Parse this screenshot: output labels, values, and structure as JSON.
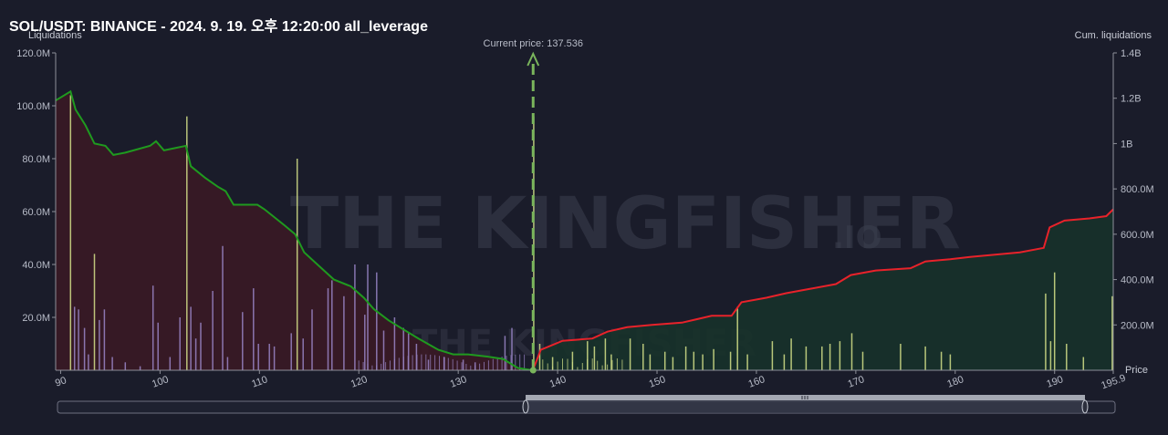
{
  "chart_data": {
    "type": "bar",
    "title": "SOL/USDT: BINANCE - 2024. 9. 19. 오후 12:20:00 all_leverage",
    "ylabel": "Liquidations",
    "ylabel_right": "Cum. liquidations",
    "xlabel": "Price",
    "xlim": [
      89.5,
      195.9
    ],
    "ylim": [
      0,
      120000000
    ],
    "ylim_right": [
      0,
      1400000000
    ],
    "x_ticks": [
      90,
      100,
      110,
      120,
      130,
      140,
      150,
      160,
      170,
      180,
      190,
      195.9
    ],
    "x_tick_labels": [
      "90",
      "100",
      "110",
      "120",
      "130",
      "140",
      "150",
      "160",
      "170",
      "180",
      "190",
      "195.9"
    ],
    "y_ticks": [
      20000000,
      40000000,
      60000000,
      80000000,
      100000000,
      120000000
    ],
    "y_tick_labels": [
      "20.0M",
      "40.0M",
      "60.0M",
      "80.0M",
      "100.0M",
      "120.0M"
    ],
    "y_right_ticks": [
      200000000,
      400000000,
      600000000,
      800000000,
      1000000000,
      1200000000,
      1400000000
    ],
    "y_right_tick_labels": [
      "200.0M",
      "400.0M",
      "600.0M",
      "800.0M",
      "1B",
      "1.2B",
      "1.4B"
    ],
    "current_price": 137.536,
    "current_price_label": "Current price: 137.536",
    "watermark": [
      "THE",
      "KINGFISHER",
      ".IO"
    ],
    "bars": [
      {
        "x": 91.0,
        "y": 104000000,
        "color": "#d6e38a"
      },
      {
        "x": 91.4,
        "y": 24000000,
        "color": "#9a86c8"
      },
      {
        "x": 91.8,
        "y": 23000000,
        "color": "#9a86c8"
      },
      {
        "x": 92.4,
        "y": 16000000,
        "color": "#9a86c8"
      },
      {
        "x": 92.8,
        "y": 6000000,
        "color": "#9a86c8"
      },
      {
        "x": 93.4,
        "y": 44000000,
        "color": "#d6e38a"
      },
      {
        "x": 93.9,
        "y": 19000000,
        "color": "#9a86c8"
      },
      {
        "x": 94.4,
        "y": 23000000,
        "color": "#9a86c8"
      },
      {
        "x": 95.2,
        "y": 5000000,
        "color": "#9a86c8"
      },
      {
        "x": 96.5,
        "y": 3000000,
        "color": "#9a86c8"
      },
      {
        "x": 98.0,
        "y": 1500000,
        "color": "#9a86c8"
      },
      {
        "x": 99.3,
        "y": 32000000,
        "color": "#9a86c8"
      },
      {
        "x": 99.8,
        "y": 18000000,
        "color": "#9a86c8"
      },
      {
        "x": 101.0,
        "y": 5000000,
        "color": "#9a86c8"
      },
      {
        "x": 102.0,
        "y": 20000000,
        "color": "#9a86c8"
      },
      {
        "x": 102.7,
        "y": 96000000,
        "color": "#d6e38a"
      },
      {
        "x": 103.1,
        "y": 24000000,
        "color": "#9a86c8"
      },
      {
        "x": 103.6,
        "y": 12000000,
        "color": "#9a86c8"
      },
      {
        "x": 104.1,
        "y": 18000000,
        "color": "#9a86c8"
      },
      {
        "x": 105.3,
        "y": 30000000,
        "color": "#9a86c8"
      },
      {
        "x": 106.3,
        "y": 47000000,
        "color": "#9a86c8"
      },
      {
        "x": 106.8,
        "y": 5000000,
        "color": "#9a86c8"
      },
      {
        "x": 108.3,
        "y": 22000000,
        "color": "#9a86c8"
      },
      {
        "x": 109.4,
        "y": 31000000,
        "color": "#9a86c8"
      },
      {
        "x": 109.9,
        "y": 10000000,
        "color": "#9a86c8"
      },
      {
        "x": 111.0,
        "y": 10000000,
        "color": "#9a86c8"
      },
      {
        "x": 111.5,
        "y": 9000000,
        "color": "#9a86c8"
      },
      {
        "x": 113.2,
        "y": 14000000,
        "color": "#9a86c8"
      },
      {
        "x": 113.8,
        "y": 80000000,
        "color": "#d6e38a"
      },
      {
        "x": 114.4,
        "y": 12000000,
        "color": "#9a86c8"
      },
      {
        "x": 115.3,
        "y": 23000000,
        "color": "#9a86c8"
      },
      {
        "x": 116.9,
        "y": 31000000,
        "color": "#9a86c8"
      },
      {
        "x": 117.3,
        "y": 34000000,
        "color": "#9a86c8"
      },
      {
        "x": 118.5,
        "y": 28000000,
        "color": "#9a86c8"
      },
      {
        "x": 119.6,
        "y": 40000000,
        "color": "#9a86c8"
      },
      {
        "x": 120.6,
        "y": 21000000,
        "color": "#9a86c8"
      },
      {
        "x": 120.9,
        "y": 40000000,
        "color": "#9a86c8"
      },
      {
        "x": 121.8,
        "y": 37000000,
        "color": "#9a86c8"
      },
      {
        "x": 122.5,
        "y": 15000000,
        "color": "#9a86c8"
      },
      {
        "x": 123.6,
        "y": 20000000,
        "color": "#9a86c8"
      },
      {
        "x": 124.5,
        "y": 16000000,
        "color": "#9a86c8"
      },
      {
        "x": 125.0,
        "y": 14000000,
        "color": "#9a86c8"
      },
      {
        "x": 125.8,
        "y": 10000000,
        "color": "#9a86c8"
      },
      {
        "x": 127.0,
        "y": 4000000,
        "color": "#9a86c8"
      },
      {
        "x": 128.6,
        "y": 5000000,
        "color": "#9a86c8"
      },
      {
        "x": 130.5,
        "y": 4000000,
        "color": "#9a86c8"
      },
      {
        "x": 131.7,
        "y": 3000000,
        "color": "#9a86c8"
      },
      {
        "x": 134.7,
        "y": 13000000,
        "color": "#9a86c8"
      },
      {
        "x": 135.4,
        "y": 16000000,
        "color": "#9a86c8"
      },
      {
        "x": 137.6,
        "y": 96000000,
        "color": "#d6e38a"
      },
      {
        "x": 138.2,
        "y": 10000000,
        "color": "#d6e38a"
      },
      {
        "x": 139.5,
        "y": 5000000,
        "color": "#d6e38a"
      },
      {
        "x": 141.5,
        "y": 7000000,
        "color": "#d6e38a"
      },
      {
        "x": 143.0,
        "y": 11000000,
        "color": "#d6e38a"
      },
      {
        "x": 143.7,
        "y": 9000000,
        "color": "#d6e38a"
      },
      {
        "x": 144.8,
        "y": 12000000,
        "color": "#d6e38a"
      },
      {
        "x": 145.4,
        "y": 6000000,
        "color": "#d6e38a"
      },
      {
        "x": 147.3,
        "y": 12000000,
        "color": "#d6e38a"
      },
      {
        "x": 148.6,
        "y": 10000000,
        "color": "#d6e38a"
      },
      {
        "x": 149.3,
        "y": 6000000,
        "color": "#d6e38a"
      },
      {
        "x": 150.8,
        "y": 7000000,
        "color": "#d6e38a"
      },
      {
        "x": 151.6,
        "y": 5000000,
        "color": "#d6e38a"
      },
      {
        "x": 152.9,
        "y": 9000000,
        "color": "#d6e38a"
      },
      {
        "x": 153.7,
        "y": 7000000,
        "color": "#d6e38a"
      },
      {
        "x": 154.6,
        "y": 6000000,
        "color": "#d6e38a"
      },
      {
        "x": 155.7,
        "y": 8000000,
        "color": "#d6e38a"
      },
      {
        "x": 157.4,
        "y": 7000000,
        "color": "#d6e38a"
      },
      {
        "x": 158.1,
        "y": 24000000,
        "color": "#d6e38a"
      },
      {
        "x": 159.1,
        "y": 6000000,
        "color": "#d6e38a"
      },
      {
        "x": 161.6,
        "y": 11000000,
        "color": "#d6e38a"
      },
      {
        "x": 162.8,
        "y": 6000000,
        "color": "#d6e38a"
      },
      {
        "x": 163.5,
        "y": 12000000,
        "color": "#d6e38a"
      },
      {
        "x": 165.0,
        "y": 9000000,
        "color": "#d6e38a"
      },
      {
        "x": 166.6,
        "y": 9000000,
        "color": "#d6e38a"
      },
      {
        "x": 167.4,
        "y": 10000000,
        "color": "#d6e38a"
      },
      {
        "x": 168.4,
        "y": 11000000,
        "color": "#d6e38a"
      },
      {
        "x": 169.6,
        "y": 14000000,
        "color": "#d6e38a"
      },
      {
        "x": 170.7,
        "y": 7000000,
        "color": "#d6e38a"
      },
      {
        "x": 174.5,
        "y": 10000000,
        "color": "#d6e38a"
      },
      {
        "x": 177.0,
        "y": 9000000,
        "color": "#d6e38a"
      },
      {
        "x": 178.6,
        "y": 7000000,
        "color": "#d6e38a"
      },
      {
        "x": 179.5,
        "y": 6000000,
        "color": "#d6e38a"
      },
      {
        "x": 189.1,
        "y": 29000000,
        "color": "#d6e38a"
      },
      {
        "x": 189.6,
        "y": 11000000,
        "color": "#d6e38a"
      },
      {
        "x": 190.0,
        "y": 37000000,
        "color": "#d6e38a"
      },
      {
        "x": 191.2,
        "y": 10000000,
        "color": "#d6e38a"
      },
      {
        "x": 192.9,
        "y": 5000000,
        "color": "#d6e38a"
      },
      {
        "x": 195.8,
        "y": 28000000,
        "color": "#d6e38a"
      }
    ],
    "cum_short": [
      [
        89.5,
        1190000000
      ],
      [
        91.0,
        1230000000
      ],
      [
        91.5,
        1150000000
      ],
      [
        92.5,
        1080000000
      ],
      [
        93.4,
        1000000000
      ],
      [
        94.5,
        990000000
      ],
      [
        95.3,
        950000000
      ],
      [
        96.5,
        960000000
      ],
      [
        99.0,
        990000000
      ],
      [
        99.6,
        1010000000
      ],
      [
        100.4,
        970000000
      ],
      [
        102.6,
        990000000
      ],
      [
        103.1,
        900000000
      ],
      [
        104.5,
        850000000
      ],
      [
        105.8,
        810000000
      ],
      [
        106.6,
        790000000
      ],
      [
        107.4,
        730000000
      ],
      [
        109.8,
        730000000
      ],
      [
        110.5,
        710000000
      ],
      [
        112.5,
        640000000
      ],
      [
        113.6,
        600000000
      ],
      [
        114.5,
        520000000
      ],
      [
        116.0,
        460000000
      ],
      [
        117.5,
        400000000
      ],
      [
        119.2,
        370000000
      ],
      [
        120.5,
        320000000
      ],
      [
        121.5,
        270000000
      ],
      [
        123.0,
        220000000
      ],
      [
        124.5,
        180000000
      ],
      [
        126.0,
        140000000
      ],
      [
        128.0,
        90000000
      ],
      [
        129.5,
        70000000
      ],
      [
        131.0,
        70000000
      ],
      [
        133.0,
        60000000
      ],
      [
        134.5,
        50000000
      ],
      [
        136.0,
        10000000
      ],
      [
        137.5,
        0
      ]
    ],
    "cum_long": [
      [
        137.5,
        0
      ],
      [
        138.3,
        90000000
      ],
      [
        140.5,
        130000000
      ],
      [
        143.5,
        140000000
      ],
      [
        145.0,
        170000000
      ],
      [
        147.0,
        190000000
      ],
      [
        149.5,
        200000000
      ],
      [
        152.5,
        210000000
      ],
      [
        155.5,
        240000000
      ],
      [
        157.5,
        240000000
      ],
      [
        158.5,
        300000000
      ],
      [
        161.0,
        320000000
      ],
      [
        163.0,
        340000000
      ],
      [
        165.5,
        360000000
      ],
      [
        168.0,
        380000000
      ],
      [
        169.5,
        420000000
      ],
      [
        172.0,
        440000000
      ],
      [
        175.5,
        450000000
      ],
      [
        177.0,
        480000000
      ],
      [
        179.5,
        490000000
      ],
      [
        181.5,
        500000000
      ],
      [
        184.0,
        510000000
      ],
      [
        186.5,
        520000000
      ],
      [
        188.9,
        540000000
      ],
      [
        189.5,
        630000000
      ],
      [
        191.0,
        660000000
      ],
      [
        193.5,
        670000000
      ],
      [
        195.2,
        680000000
      ],
      [
        195.9,
        710000000
      ]
    ],
    "colors": {
      "background": "#1a1c2a",
      "short_fill": "#3a1a25",
      "long_fill": "#17322a",
      "short_line": "#1f9a1f",
      "long_line": "#e8222a",
      "current_price": "#7ab55c",
      "axis_line": "#8d8f99",
      "bar_yellow": "#d6e38a",
      "bar_purple": "#9a86c8"
    },
    "grid": false
  }
}
